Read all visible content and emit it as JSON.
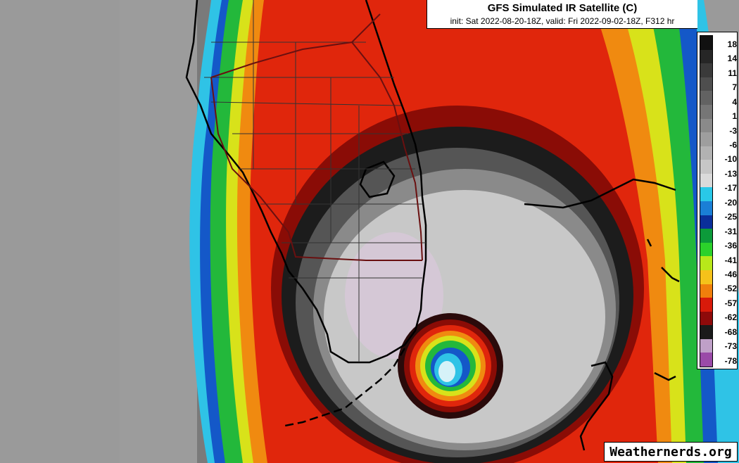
{
  "title": "GFS Simulated IR Satellite (C)",
  "subtitle": "init: Sat 2022-08-20-18Z, valid: Fri 2022-09-02-18Z, F312 hr",
  "watermark": "Weathernerds.org",
  "colorbar": {
    "labels": [
      "18",
      "14",
      "11",
      "7",
      "4",
      "1",
      "-3",
      "-6",
      "-10",
      "-13",
      "-17",
      "-20",
      "-25",
      "-31",
      "-36",
      "-41",
      "-46",
      "-52",
      "-57",
      "-62",
      "-68",
      "-73",
      "-78"
    ],
    "colors": [
      "#111111",
      "#262626",
      "#3a3a3a",
      "#4e4e4e",
      "#626262",
      "#767676",
      "#8a8a8a",
      "#9e9e9e",
      "#b2b2b2",
      "#c6c6c6",
      "#dadada",
      "#29c8e8",
      "#1a7fd6",
      "#0a2f9a",
      "#0c9a3a",
      "#2bd12b",
      "#b8e81a",
      "#f5c21a",
      "#f07f0c",
      "#d81a0a",
      "#8e0a0a",
      "#1a1a1a",
      "#bfa0c8",
      "#9a4aa8"
    ]
  },
  "map": {
    "colors": {
      "clear_dark": "#7a7a7a",
      "clear_mid": "#9a9a9a",
      "clear_light": "#b8b8b8",
      "cloud_cyan": "#2fc3e6",
      "cloud_blue": "#1458c8",
      "cloud_green": "#23b83b",
      "cloud_yellow": "#d8e21a",
      "cloud_orange": "#f08a10",
      "cloud_red": "#e0260c",
      "cloud_darkred": "#8a0c06",
      "eyewall_black": "#1c1c1c",
      "eye_gray": "#c8c8c8",
      "eye_pink": "#d8c8da",
      "coast": "#000000",
      "roads": "#6a1010"
    }
  }
}
